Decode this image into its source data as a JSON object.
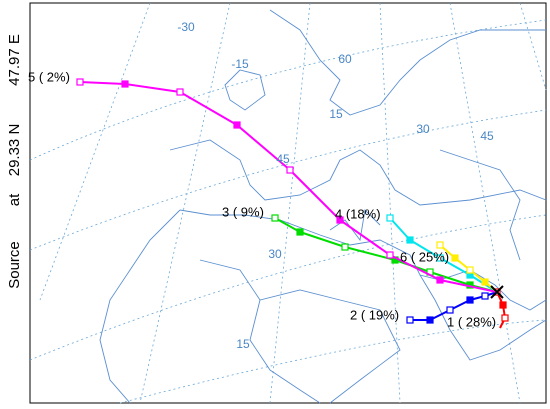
{
  "source_label": [
    "Source",
    "at",
    "29.33 N",
    "47.97 E"
  ],
  "grid_labels": [
    "-30",
    "-15",
    "60",
    "15",
    "30",
    "45",
    "45",
    "30",
    "15"
  ],
  "clusters": [
    {
      "label": "1 ( 28%)",
      "color": "#ff0000"
    },
    {
      "label": "2 ( 19%)",
      "color": "#0000ff"
    },
    {
      "label": "3 ( 9%)",
      "color": "#00dd00"
    },
    {
      "label": "4 (18%)",
      "color": "#00e5ee"
    },
    {
      "label": "5 ( 2%)",
      "color": "#ff00ff"
    },
    {
      "label": "6 ( 25%)",
      "color": "#ffee00"
    }
  ]
}
